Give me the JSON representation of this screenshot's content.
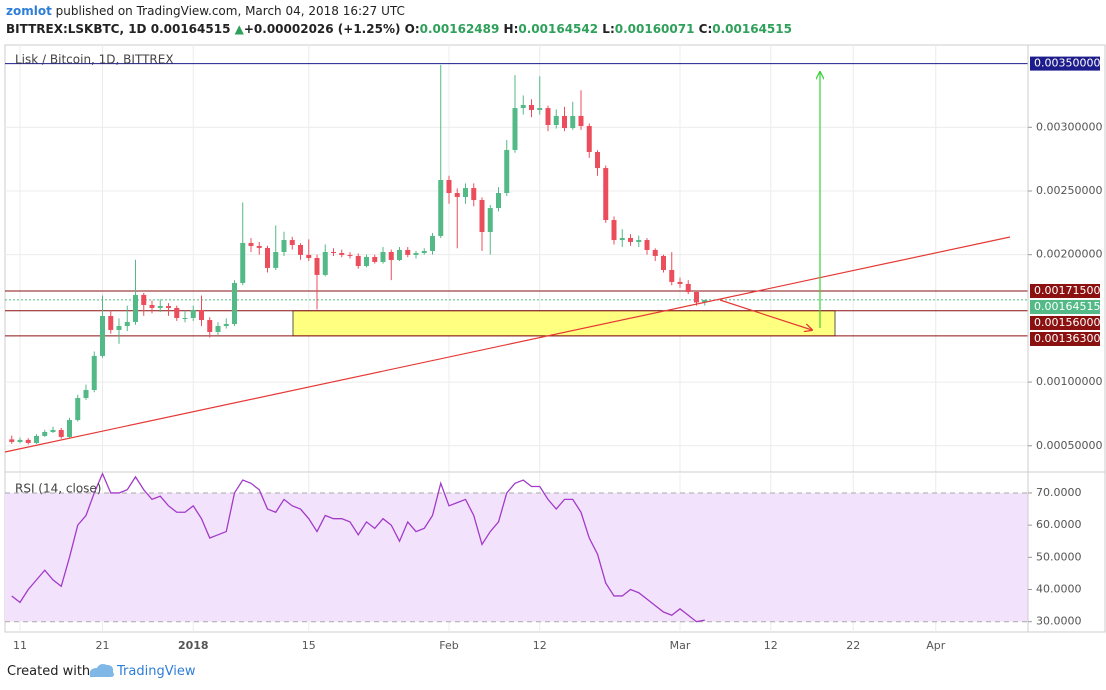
{
  "header": {
    "author": "zomlot",
    "published": "published on TradingView.com, March 04, 2018 16:27 UTC",
    "symbol": "BITTREX:LSKBTC, 1D",
    "last": "0.00164515",
    "change": "+0.00002026 (+1.25%)",
    "ohlc": [
      {
        "label": "O:",
        "value": "0.00162489"
      },
      {
        "label": "H:",
        "value": "0.00164542"
      },
      {
        "label": "L:",
        "value": "0.00160071"
      },
      {
        "label": "C:",
        "value": "0.00164515"
      }
    ]
  },
  "chart_data": [
    {
      "type": "candlestick",
      "title": "Lisk / Bitcoin, 1D, BITTREX",
      "categories": [
        null,
        "11",
        null,
        null,
        null,
        null,
        null,
        null,
        null,
        null,
        null,
        "21",
        null,
        null,
        null,
        null,
        null,
        null,
        null,
        null,
        null,
        null,
        "2018",
        null,
        null,
        null,
        null,
        null,
        null,
        null,
        null,
        null,
        null,
        null,
        null,
        null,
        "15",
        null,
        null,
        null,
        null,
        null,
        null,
        null,
        null,
        null,
        null,
        null,
        null,
        null,
        null,
        null,
        null,
        "Feb",
        null,
        null,
        null,
        null,
        null,
        null,
        null,
        null,
        null,
        null,
        "12",
        null,
        null,
        null,
        null,
        null,
        null,
        null,
        null,
        null,
        null,
        null,
        null,
        null,
        null,
        null,
        null,
        "Mar",
        null,
        null,
        null,
        null,
        null,
        null,
        null,
        null,
        null,
        null,
        "12",
        null,
        null,
        null,
        null,
        null,
        null,
        null,
        null,
        null,
        "22",
        null,
        null,
        null,
        null,
        null,
        null,
        null,
        null,
        null,
        "Apr",
        null,
        null,
        null,
        null,
        null,
        null,
        null,
        null,
        null
      ],
      "open": [
        0.00055,
        0.00053,
        0.000546,
        0.000522,
        0.000577,
        0.000608,
        0.000624,
        0.000569,
        0.000702,
        0.000875,
        0.000938,
        0.001205,
        0.001519,
        0.001409,
        0.00144,
        0.001472,
        0.001684,
        0.001605,
        0.001582,
        0.001597,
        0.001582,
        0.001503,
        0.001503,
        0.001566,
        0.001487,
        0.001393,
        0.00144,
        0.001456,
        0.001778,
        0.002092,
        0.002068,
        0.002053,
        0.001896,
        0.002021,
        0.002115,
        0.002076,
        0.001998,
        0.001974,
        0.001841,
        0.002021,
        0.002013,
        0.001998,
        0.00199,
        0.001911,
        0.001982,
        0.001943,
        0.002021,
        0.001958,
        0.002037,
        0.001998,
        0.002013,
        0.002029,
        0.002147,
        0.002586,
        0.002484,
        0.002453,
        0.002523,
        0.002429,
        0.002178,
        0.002366,
        0.002484,
        0.002822,
        0.003151,
        0.003175,
        0.003136,
        0.003151,
        0.003018,
        0.003089,
        0.002994,
        0.003089,
        0.00301,
        0.002806,
        0.00268,
        0.002272,
        0.002115,
        0.002131,
        0.0021,
        0.002115,
        0.002037,
        0.00199,
        0.00188,
        0.001786,
        0.00177,
        0.001707,
        0.00162489,
        null,
        null,
        null,
        null,
        null,
        null,
        null,
        null,
        null,
        null,
        null,
        null,
        null,
        null,
        null,
        null,
        null,
        null,
        null,
        null,
        null,
        null,
        null,
        null,
        null,
        null,
        null,
        null,
        null,
        null,
        null,
        null,
        null,
        null,
        null,
        null,
        null
      ],
      "high": [
        0.00058,
        0.000565,
        0.00056,
        0.00059,
        0.000625,
        0.00065,
        0.00064,
        0.00072,
        0.0009,
        0.00098,
        0.00124,
        0.00168,
        0.00156,
        0.0015,
        0.0016,
        0.00196,
        0.0017,
        0.00164,
        0.00165,
        0.00162,
        0.0016,
        0.00156,
        0.0016,
        0.00168,
        0.00151,
        0.00147,
        0.0015,
        0.0018,
        0.00241,
        0.00213,
        0.0021,
        0.00207,
        0.00223,
        0.00218,
        0.00214,
        0.00209,
        0.00212,
        0.002,
        0.00208,
        0.00205,
        0.00204,
        0.00202,
        0.00201,
        0.002,
        0.002,
        0.00206,
        0.00204,
        0.00206,
        0.00206,
        0.00203,
        0.00205,
        0.00217,
        0.00349,
        0.00262,
        0.00252,
        0.00256,
        0.00256,
        0.00245,
        0.00239,
        0.00253,
        0.0029,
        0.00341,
        0.00325,
        0.00322,
        0.0034,
        0.00317,
        0.00314,
        0.00316,
        0.0032,
        0.00329,
        0.00303,
        0.00282,
        0.0027,
        0.0023,
        0.0022,
        0.00216,
        0.00215,
        0.00213,
        0.00205,
        0.002,
        0.00202,
        0.00182,
        0.0018,
        0.00172,
        0.00164542,
        null,
        null,
        null,
        null,
        null,
        null,
        null,
        null,
        null,
        null,
        null,
        null,
        null,
        null,
        null,
        null,
        null,
        null,
        null,
        null,
        null,
        null,
        null,
        null,
        null,
        null,
        null,
        null,
        null,
        null,
        null,
        null,
        null,
        null,
        null,
        null,
        null
      ],
      "low": [
        0.000515,
        0.00052,
        0.00051,
        0.000515,
        0.00057,
        0.0006,
        0.000555,
        0.00056,
        0.00069,
        0.00086,
        0.00092,
        0.00119,
        0.00138,
        0.0013,
        0.0014,
        0.00145,
        0.00152,
        0.00154,
        0.00155,
        0.00152,
        0.00148,
        0.00147,
        0.00148,
        0.00144,
        0.00135,
        0.00137,
        0.00142,
        0.00144,
        0.00176,
        0.00202,
        0.002,
        0.00186,
        0.00188,
        0.00199,
        0.00204,
        0.00196,
        0.00195,
        0.00157,
        0.00183,
        0.00199,
        0.00198,
        0.00197,
        0.00189,
        0.0019,
        0.00193,
        0.00193,
        0.0018,
        0.00195,
        0.00198,
        0.00197,
        0.002,
        0.002,
        0.00213,
        0.0024,
        0.00205,
        0.0024,
        0.00238,
        0.00203,
        0.002,
        0.00234,
        0.00246,
        0.0028,
        0.0031,
        0.00308,
        0.0031,
        0.00297,
        0.00299,
        0.00297,
        0.00298,
        0.00298,
        0.00276,
        0.00262,
        0.00225,
        0.00208,
        0.00206,
        0.00207,
        0.00206,
        0.002,
        0.00195,
        0.00186,
        0.00176,
        0.00174,
        0.00169,
        0.0016,
        0.00160071,
        null,
        null,
        null,
        null,
        null,
        null,
        null,
        null,
        null,
        null,
        null,
        null,
        null,
        null,
        null,
        null,
        null,
        null,
        null,
        null,
        null,
        null,
        null,
        null,
        null,
        null,
        null,
        null,
        null,
        null,
        null,
        null,
        null,
        null,
        null,
        null,
        null
      ],
      "close": [
        0.00053,
        0.000546,
        0.000522,
        0.000577,
        0.000608,
        0.000624,
        0.000569,
        0.000702,
        0.000875,
        0.000938,
        0.001205,
        0.001519,
        0.001409,
        0.00144,
        0.001472,
        0.001684,
        0.001605,
        0.001582,
        0.001597,
        0.001582,
        0.001503,
        0.001503,
        0.001566,
        0.001487,
        0.001393,
        0.00144,
        0.001456,
        0.001778,
        0.002092,
        0.002068,
        0.002053,
        0.001896,
        0.002021,
        0.002115,
        0.002076,
        0.001998,
        0.001974,
        0.001841,
        0.002021,
        0.002013,
        0.001998,
        0.00199,
        0.001911,
        0.001982,
        0.001943,
        0.002021,
        0.001958,
        0.002037,
        0.001998,
        0.002013,
        0.002029,
        0.002147,
        0.002586,
        0.002484,
        0.002453,
        0.002523,
        0.002429,
        0.002178,
        0.002366,
        0.002484,
        0.002822,
        0.003151,
        0.003175,
        0.003136,
        0.003151,
        0.003018,
        0.003089,
        0.002994,
        0.003089,
        0.00301,
        0.002806,
        0.00268,
        0.002272,
        0.002115,
        0.002131,
        0.0021,
        0.002115,
        0.002037,
        0.00199,
        0.00188,
        0.001786,
        0.00177,
        0.001707,
        0.00162489,
        0.00164515,
        null,
        null,
        null,
        null,
        null,
        null,
        null,
        null,
        null,
        null,
        null,
        null,
        null,
        null,
        null,
        null,
        null,
        null,
        null,
        null,
        null,
        null,
        null,
        null,
        null,
        null,
        null,
        null,
        null,
        null,
        null,
        null,
        null,
        null,
        null,
        null,
        null
      ],
      "up_color": "#53b987",
      "down_color": "#eb4d5c",
      "ylim": [
        0.000294,
        0.003646
      ],
      "yticks": [
        {
          "value": 0.0005,
          "label": "0.00050000"
        },
        {
          "value": 0.001,
          "label": "0.00100000"
        },
        {
          "value": 0.002,
          "label": "0.00200000"
        },
        {
          "value": 0.0025,
          "label": "0.00250000"
        },
        {
          "value": 0.003,
          "label": "0.00300000"
        }
      ],
      "grid": true,
      "levels": [
        {
          "value": 0.0035,
          "label": "0.00350000",
          "color": "#1c1c8c"
        },
        {
          "value": 0.001715,
          "label": "0.00171500",
          "color": "#8b1010"
        },
        {
          "value": 0.00164515,
          "label": "0.00164515",
          "color": "#53b987",
          "dashed": true
        },
        {
          "value": 0.00156,
          "label": "0.00156000",
          "color": "#8b1010"
        },
        {
          "value": 0.001363,
          "label": "0.00136300",
          "color": "#8b1010"
        }
      ],
      "zone": {
        "low": 0.001363,
        "high": 0.00156,
        "color": "#ffff80"
      }
    },
    {
      "type": "line",
      "title": "RSI (14, close)",
      "values": [
        38,
        36,
        40,
        43,
        46,
        43,
        41,
        50,
        60,
        63,
        70,
        76,
        70,
        70,
        71,
        75,
        71,
        68,
        69,
        66,
        64,
        64,
        66,
        62,
        56,
        57,
        58,
        70,
        74,
        73,
        71,
        65,
        64,
        68,
        66,
        65,
        62,
        58,
        63,
        62,
        62,
        61,
        57,
        61,
        59,
        62,
        60,
        55,
        61,
        58,
        59,
        63,
        73,
        66,
        67,
        68,
        63,
        54,
        58,
        61,
        70,
        73,
        74,
        72,
        72,
        68,
        65,
        68,
        68,
        64,
        56,
        51,
        42,
        38,
        38,
        40,
        39,
        37,
        35,
        33,
        32,
        34,
        32,
        30,
        30.5,
        null,
        null,
        null,
        null,
        null,
        null,
        null,
        null,
        null,
        null,
        null,
        null,
        null,
        null,
        null,
        null,
        null,
        null,
        null,
        null,
        null,
        null,
        null,
        null,
        null,
        null,
        null,
        null,
        null,
        null,
        null,
        null,
        null,
        null,
        null,
        null,
        null
      ],
      "color": "#a13bc8",
      "ylim": [
        26.8,
        76.2
      ],
      "yticks": [
        {
          "value": 30,
          "label": "30.0000"
        },
        {
          "value": 40,
          "label": "40.0000"
        },
        {
          "value": 50,
          "label": "50.0000"
        },
        {
          "value": 60,
          "label": "60.0000"
        },
        {
          "value": 70,
          "label": "70.0000"
        }
      ],
      "band": [
        30,
        70
      ],
      "band_color": "#f3e2fc"
    }
  ],
  "footer": {
    "created": "Created with",
    "brand": "TradingView"
  }
}
